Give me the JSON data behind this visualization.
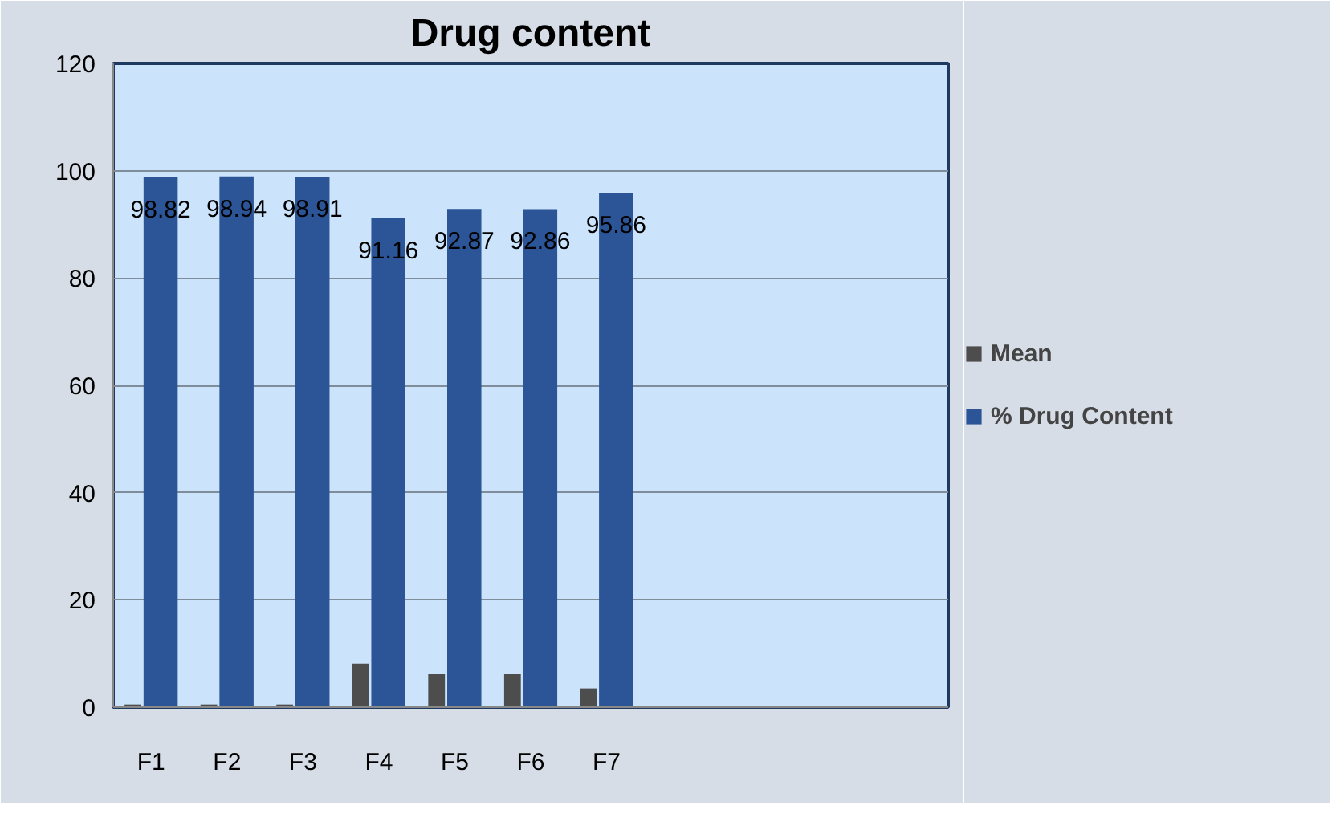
{
  "chart_data": {
    "type": "bar",
    "title": "Drug content",
    "categories": [
      "F1",
      "F2",
      "F3",
      "F4",
      "F5",
      "F6",
      "F7",
      null,
      null,
      null,
      null
    ],
    "series": [
      {
        "name": "Mean",
        "color": "#4d4d4d",
        "values": [
          0.5,
          0.5,
          0.5,
          8.1,
          6.3,
          6.3,
          3.5,
          null,
          null,
          null,
          null
        ]
      },
      {
        "name": "% Drug Content",
        "color": "#2b5597",
        "values": [
          98.82,
          98.94,
          98.91,
          91.16,
          92.87,
          92.86,
          95.86,
          null,
          null,
          null,
          null
        ],
        "value_labels": [
          "98.82",
          "98.94",
          "98.91",
          "91.16",
          "92.87",
          "92.86",
          "95.86",
          null,
          null,
          null,
          null
        ]
      }
    ],
    "ylim": [
      0,
      120
    ],
    "yticks": [
      0,
      20,
      40,
      60,
      80,
      100,
      120
    ],
    "grid": "y",
    "legend": "right"
  }
}
